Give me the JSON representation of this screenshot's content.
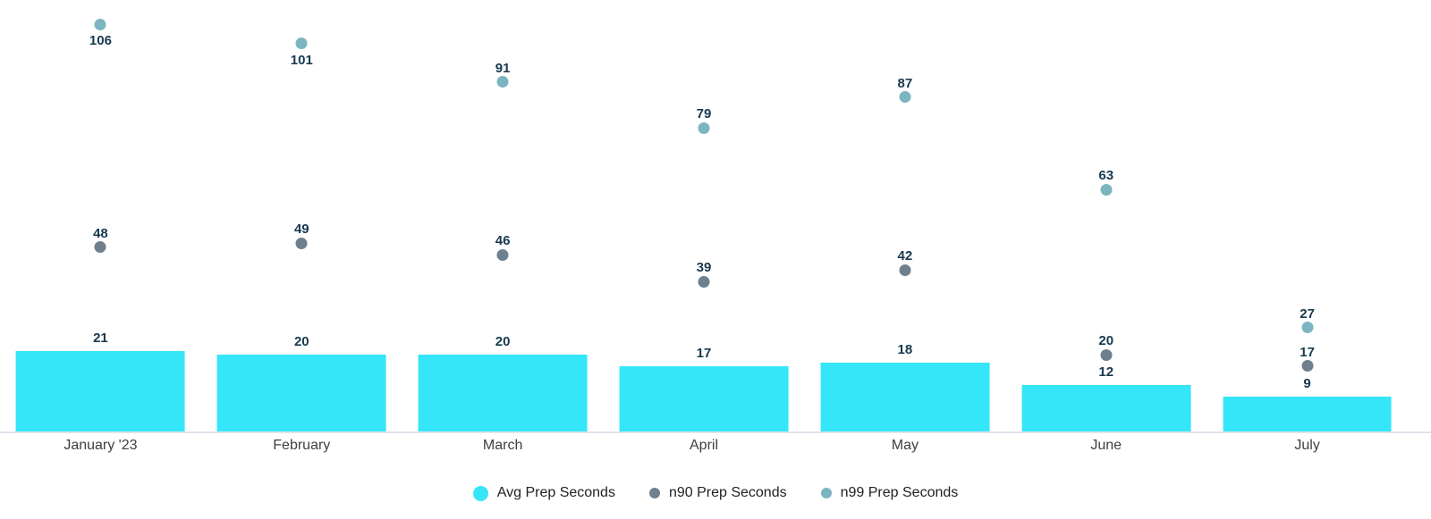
{
  "chart_data": {
    "type": "bar",
    "subtype": "bar-with-scatter-overlay",
    "title": "",
    "xlabel": "",
    "ylabel": "",
    "categories": [
      "January '23",
      "February",
      "March",
      "April",
      "May",
      "June",
      "July"
    ],
    "series": [
      {
        "name": "Avg Prep Seconds",
        "type": "bar",
        "color": "#35e5f8",
        "values": [
          21,
          20,
          20,
          17,
          18,
          12,
          9
        ]
      },
      {
        "name": "n90 Prep Seconds",
        "type": "scatter",
        "color": "#6e808d",
        "values": [
          48,
          49,
          46,
          39,
          42,
          20,
          17
        ]
      },
      {
        "name": "n99 Prep Seconds",
        "type": "scatter",
        "color": "#7bb6c0",
        "values": [
          106,
          101,
          91,
          79,
          87,
          63,
          27
        ],
        "label_below": [
          true,
          true,
          false,
          false,
          false,
          false,
          false
        ]
      }
    ],
    "ylim": [
      0,
      112
    ],
    "grid": false,
    "y_axis_visible": false,
    "data_labels": true,
    "legend_position": "bottom"
  },
  "colors": {
    "background": "#ffffff",
    "avg_bar": "#35e5f8",
    "n90_dot": "#6e808d",
    "n99_dot": "#7bb6c0",
    "data_label": "#17394f",
    "axis_label": "#3c4043",
    "legend_text": "#202124",
    "baseline": "#e2e2eb"
  }
}
